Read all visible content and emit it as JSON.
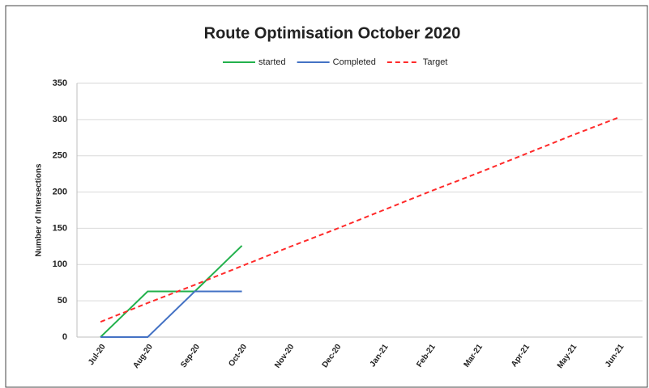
{
  "chart_data": {
    "type": "line",
    "title": "Route Optimisation October 2020",
    "y_label": "Number of Intersections",
    "categories": [
      "Jul-20",
      "Aug-20",
      "Sep-20",
      "Oct-20",
      "Nov-20",
      "Dec-20",
      "Jan-21",
      "Feb-21",
      "Mar-21",
      "Apr-21",
      "May-21",
      "Jun-21"
    ],
    "series": [
      {
        "name": "started",
        "color": "#22b14c",
        "dash": false,
        "values": [
          0,
          63,
          63,
          126,
          null,
          null,
          null,
          null,
          null,
          null,
          null,
          null
        ]
      },
      {
        "name": "Completed",
        "color": "#4472c4",
        "dash": false,
        "values": [
          0,
          0,
          63,
          63,
          null,
          null,
          null,
          null,
          null,
          null,
          null,
          null
        ]
      },
      {
        "name": "Target",
        "color": "#ff2a2a",
        "dash": true,
        "values": [
          21,
          47,
          72,
          98,
          124,
          149,
          175,
          201,
          226,
          252,
          278,
          303
        ]
      }
    ],
    "ylim": [
      0,
      350
    ],
    "yticks": [
      0,
      50,
      100,
      150,
      200,
      250,
      300,
      350
    ],
    "grid": true,
    "legend": "top"
  }
}
